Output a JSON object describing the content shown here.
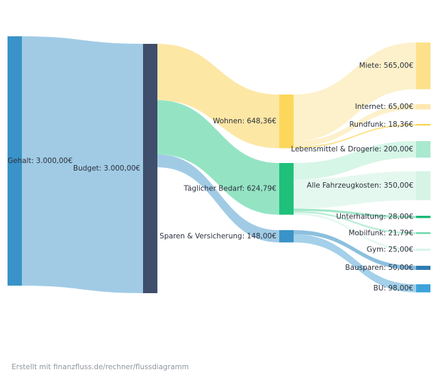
{
  "footer": "Erstellt mit finanzfluss.de/rechner/flussdiagramm",
  "chart_data": {
    "type": "sankey",
    "currency": "€",
    "nodes": [
      {
        "id": "gehalt",
        "label": "Gehalt: 3.000,00€",
        "color": "#3a93c8"
      },
      {
        "id": "budget",
        "label": "Budget: 3.000,00€",
        "color": "#3f4e6b"
      },
      {
        "id": "wohnen",
        "label": "Wohnen: 648,36€",
        "color": "#fdd75c"
      },
      {
        "id": "bedarf",
        "label": "Täglicher Bedarf: 624,79€",
        "color": "#1fc17a"
      },
      {
        "id": "sparen",
        "label": "Sparen & Versicherung: 148,00€",
        "color": "#3a93c8"
      },
      {
        "id": "miete",
        "label": "Miete: 565,00€",
        "color": "#fde18a"
      },
      {
        "id": "internet",
        "label": "Internet: 65,00€",
        "color": "#fde8b0"
      },
      {
        "id": "rundfunk",
        "label": "Rundfunk: 18,36€",
        "color": "#fcd24d"
      },
      {
        "id": "lebensmittel",
        "label": "Lebensmittel & Drogerie: 200,00€",
        "color": "#a8e9cf"
      },
      {
        "id": "fahrzeug",
        "label": "Alle Fahrzeugkosten: 350,00€",
        "color": "#d6f4e6"
      },
      {
        "id": "unterhaltung",
        "label": "Unterhaltung: 28,00€",
        "color": "#1ab878"
      },
      {
        "id": "mobilfunk",
        "label": "Mobilfunk: 21,79€",
        "color": "#6fd9ae"
      },
      {
        "id": "gym",
        "label": "Gym: 25,00€",
        "color": "#d6f4e6"
      },
      {
        "id": "bausparen",
        "label": "Bausparen: 50,00€",
        "color": "#2f7cb1"
      },
      {
        "id": "bu",
        "label": "BU: 98,00€",
        "color": "#3ea3db"
      }
    ],
    "links": [
      {
        "source": "gehalt",
        "target": "budget",
        "value": 3000.0,
        "color": "#9cc8e4"
      },
      {
        "source": "budget",
        "target": "wohnen",
        "value": 648.36,
        "color": "#fde6a0"
      },
      {
        "source": "budget",
        "target": "bedarf",
        "value": 624.79,
        "color": "#8ee3c1"
      },
      {
        "source": "budget",
        "target": "sparen",
        "value": 148.0,
        "color": "#9cc8e4"
      },
      {
        "source": "wohnen",
        "target": "miete",
        "value": 565.0,
        "color": "#fdf0c8"
      },
      {
        "source": "wohnen",
        "target": "internet",
        "value": 65.0,
        "color": "#fdf0c8"
      },
      {
        "source": "wohnen",
        "target": "rundfunk",
        "value": 18.36,
        "color": "#fde38e"
      },
      {
        "source": "bedarf",
        "target": "lebensmittel",
        "value": 200.0,
        "color": "#d4f5e6"
      },
      {
        "source": "bedarf",
        "target": "fahrzeug",
        "value": 350.0,
        "color": "#e4f8ee"
      },
      {
        "source": "bedarf",
        "target": "unterhaltung",
        "value": 28.0,
        "color": "#9fe5c6"
      },
      {
        "source": "bedarf",
        "target": "mobilfunk",
        "value": 21.79,
        "color": "#b8edd6"
      },
      {
        "source": "bedarf",
        "target": "gym",
        "value": 25.0,
        "color": "#e4f8ee"
      },
      {
        "source": "sparen",
        "target": "bausparen",
        "value": 50.0,
        "color": "#86bcdc"
      },
      {
        "source": "sparen",
        "target": "bu",
        "value": 98.0,
        "color": "#9fcde9"
      }
    ]
  }
}
